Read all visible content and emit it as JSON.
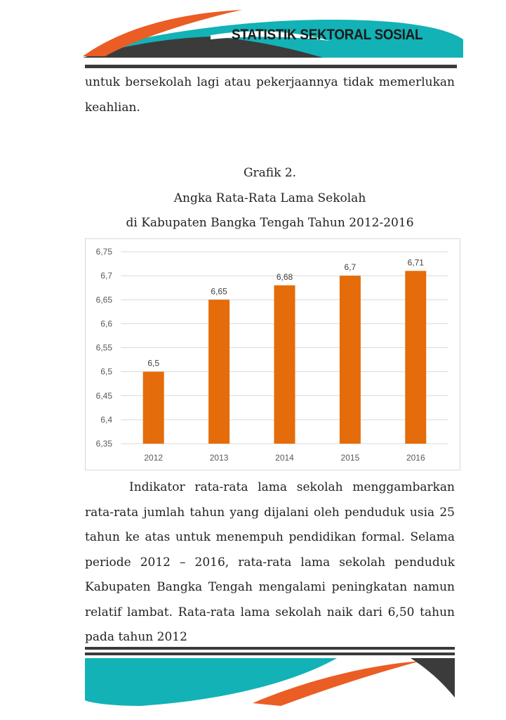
{
  "header": {
    "title": "STATISTIK SEKTORAL SOSIAL",
    "colors": {
      "teal": "#12b2b6",
      "orange": "#ea5d24",
      "dark": "#3b3b3b"
    }
  },
  "paragraphs": {
    "p1": "untuk bersekolah lagi atau pekerjaannya tidak memerlukan keahlian.",
    "p2": "Indikator rata-rata lama sekolah menggambarkan rata-rata jumlah tahun yang dijalani oleh penduduk usia 25 tahun ke atas untuk menempuh pendidikan formal. Selama periode 2012 – 2016, rata-rata lama sekolah penduduk Kabupaten Bangka Tengah mengalami peningkatan namun relatif lambat. Rata-rata lama sekolah naik dari 6,50 tahun pada tahun 2012"
  },
  "caption": {
    "line1": "Grafik 2.",
    "line2": "Angka Rata-Rata Lama Sekolah",
    "line3": "di Kabupaten Bangka Tengah Tahun 2012-2016"
  },
  "chart_data": {
    "type": "bar",
    "categories": [
      "2012",
      "2013",
      "2014",
      "2015",
      "2016"
    ],
    "values": [
      6.5,
      6.65,
      6.68,
      6.7,
      6.71
    ],
    "value_labels": [
      "6,5",
      "6,65",
      "6,68",
      "6,7",
      "6,71"
    ],
    "ylim": [
      6.35,
      6.75
    ],
    "yticks": [
      6.35,
      6.4,
      6.45,
      6.5,
      6.55,
      6.6,
      6.65,
      6.7,
      6.75
    ],
    "ytick_labels": [
      "6,35",
      "6,4",
      "6,45",
      "6,5",
      "6,55",
      "6,6",
      "6,65",
      "6,7",
      "6,75"
    ],
    "grid": true,
    "bar_color": "#e46c0a",
    "xlabel": "",
    "ylabel": "",
    "title": ""
  }
}
